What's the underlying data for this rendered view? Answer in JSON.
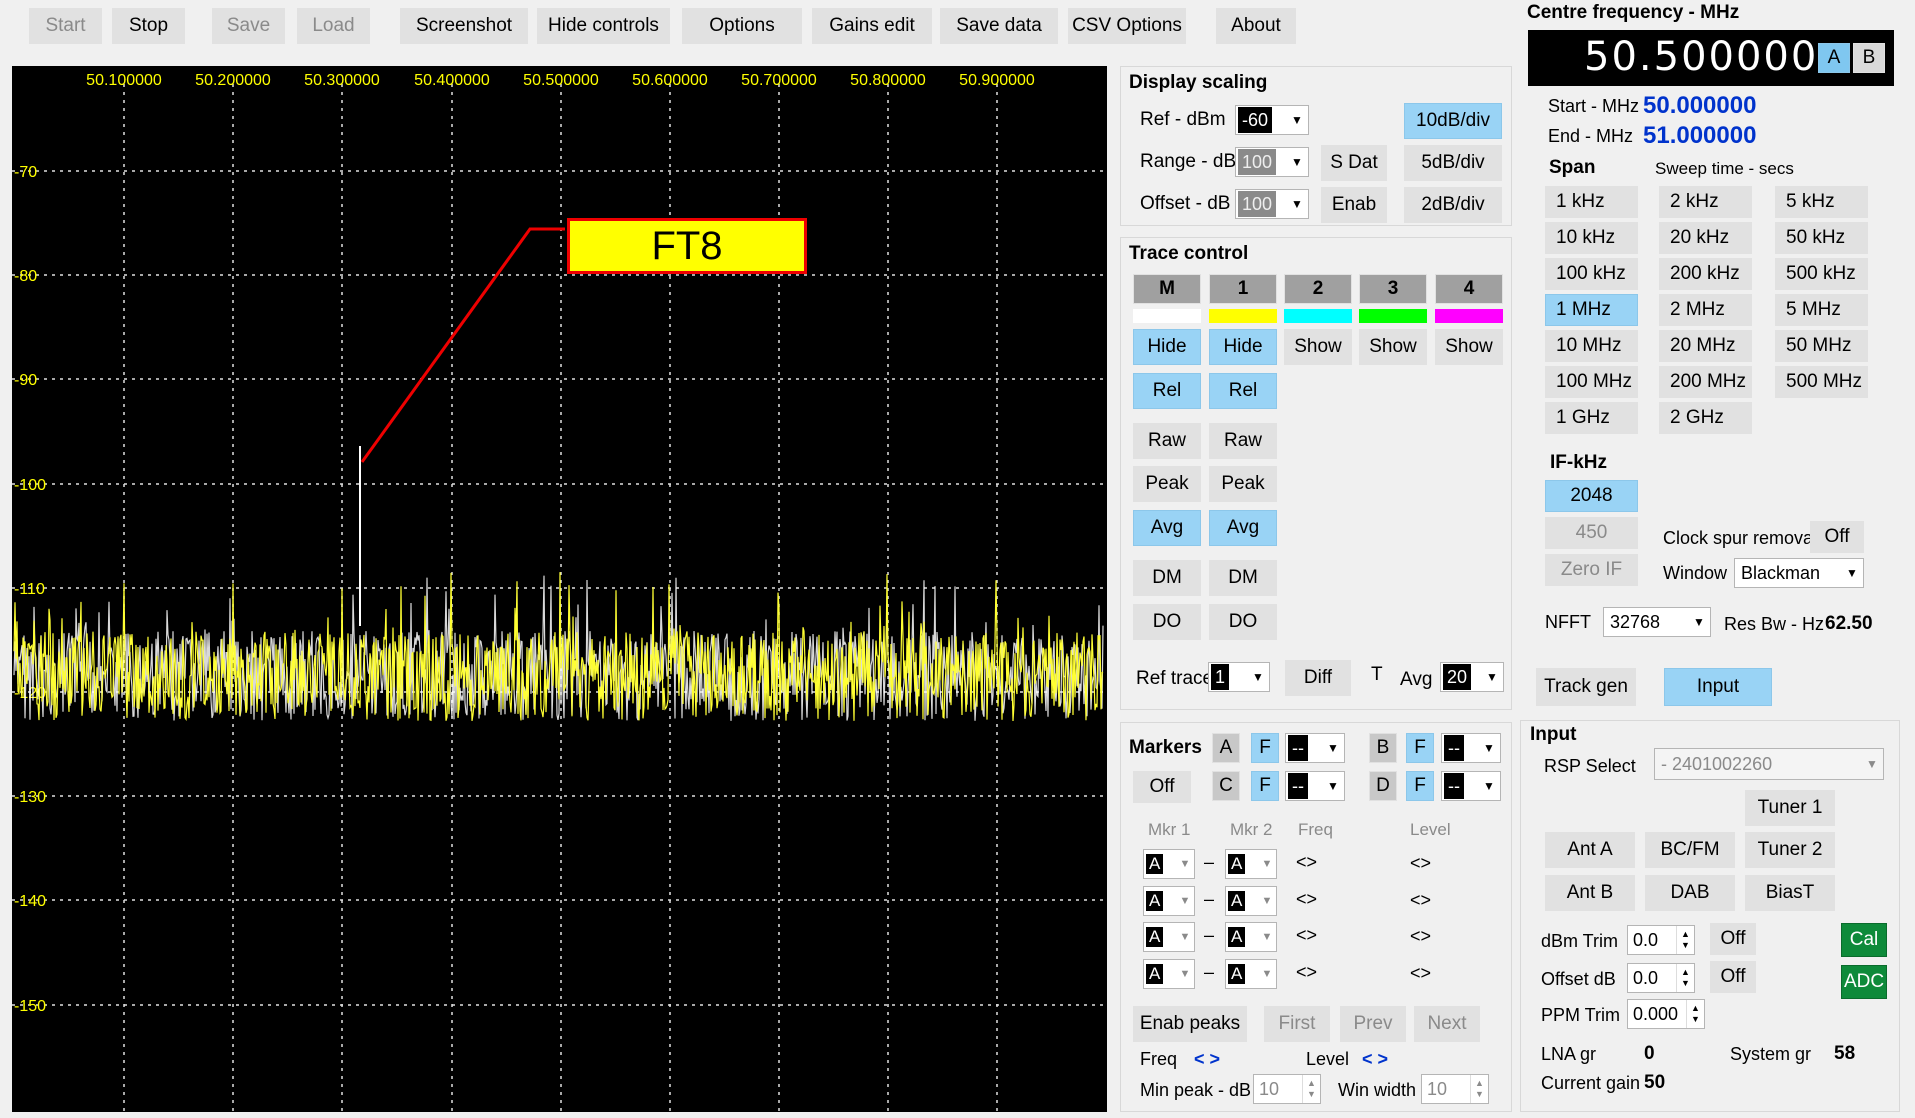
{
  "toolbar": {
    "start": "Start",
    "stop": "Stop",
    "save": "Save",
    "load": "Load",
    "screenshot": "Screenshot",
    "hide_controls": "Hide controls",
    "options": "Options",
    "gains_edit": "Gains edit",
    "save_data": "Save data",
    "csv_options": "CSV Options",
    "about": "About"
  },
  "plot": {
    "x_ticks": [
      "50.100000",
      "50.200000",
      "50.300000",
      "50.400000",
      "50.500000",
      "50.600000",
      "50.700000",
      "50.800000",
      "50.900000"
    ],
    "y_ticks": [
      "-70",
      "-80",
      "-90",
      "-100",
      "-110",
      "-120",
      "-130",
      "-140",
      "-150"
    ],
    "annotation": "FT8",
    "colors": {
      "background": "#000000",
      "trace": "#ffff33",
      "grid": "#e0e0e0",
      "axis_text": "#ffff00",
      "annotation_bg": "#ffff00",
      "annotation_border": "#ee0000"
    }
  },
  "display_scaling": {
    "title": "Display scaling",
    "ref_label": "Ref - dBm",
    "ref_value": "-60",
    "range_label": "Range - dB",
    "range_value": "100",
    "offset_label": "Offset - dB",
    "offset_value": "100",
    "sdat": "S Dat",
    "enab": "Enab",
    "d10": "10dB/div",
    "d5": "5dB/div",
    "d2": "2dB/div"
  },
  "trace_control": {
    "title": "Trace control",
    "headers": [
      "M",
      "1",
      "2",
      "3",
      "4"
    ],
    "swatches": [
      "#ffffff",
      "#ffff00",
      "#00ffff",
      "#00ff00",
      "#ff00ff"
    ],
    "hide": "Hide",
    "show": "Show",
    "rel": "Rel",
    "raw": "Raw",
    "peak": "Peak",
    "avg": "Avg",
    "dm": "DM",
    "do": "DO",
    "ref_trace_label": "Ref trace",
    "ref_trace_value": "1",
    "diff": "Diff",
    "t": "T",
    "avg_label": "Avg",
    "avg_value": "20"
  },
  "markers": {
    "title": "Markers",
    "a": "A",
    "b": "B",
    "c": "C",
    "d": "D",
    "f": "F",
    "dash": "--",
    "off": "Off",
    "mkr1": "Mkr 1",
    "mkr2": "Mkr 2",
    "freq": "Freq",
    "level": "Level",
    "row_val": "A",
    "sep": "–",
    "arrows": "<>",
    "enab_peaks": "Enab peaks",
    "first": "First",
    "prev": "Prev",
    "next": "Next",
    "freq_label": "Freq",
    "level_label": "Level",
    "nav": "< >",
    "min_peak_label": "Min peak - dB",
    "min_peak_value": "10",
    "win_width_label": "Win width",
    "win_width_value": "10"
  },
  "centre": {
    "title": "Centre frequency - MHz",
    "value": "50.500000",
    "a": "A",
    "b": "B",
    "start_label": "Start - MHz",
    "start_value": "50.000000",
    "end_label": "End - MHz",
    "end_value": "51.000000",
    "span_label": "Span",
    "sweep_label": "Sweep time - secs",
    "spans": [
      [
        "1 kHz",
        "2 kHz",
        "5 kHz"
      ],
      [
        "10 kHz",
        "20 kHz",
        "50 kHz"
      ],
      [
        "100 kHz",
        "200 kHz",
        "500 kHz"
      ],
      [
        "1 MHz",
        "2 MHz",
        "5 MHz"
      ],
      [
        "10 MHz",
        "20 MHz",
        "50 MHz"
      ],
      [
        "100 MHz",
        "200 MHz",
        "500 MHz"
      ],
      [
        "1 GHz",
        "2 GHz",
        ""
      ]
    ],
    "if_label": "IF-kHz",
    "if_2048": "2048",
    "if_450": "450",
    "zero_if": "Zero IF",
    "clock_spur": "Clock spur removal",
    "clock_spur_value": "Off",
    "window_label": "Window",
    "window_value": "Blackman",
    "nfft_label": "NFFT",
    "nfft_value": "32768",
    "resbw_label": "Res Bw - Hz",
    "resbw_value": "62.50"
  },
  "tabs": {
    "track_gen": "Track gen",
    "input": "Input"
  },
  "input": {
    "title": "Input",
    "rsp_label": "RSP Select",
    "rsp_value": "- 2401002260",
    "tuner1": "Tuner 1",
    "ant_a": "Ant A",
    "bcfm": "BC/FM",
    "tuner2": "Tuner 2",
    "ant_b": "Ant B",
    "dab": "DAB",
    "biast": "BiasT",
    "dbm_trim_label": "dBm Trim",
    "dbm_trim_value": "0.0",
    "offset_db_label": "Offset dB",
    "offset_db_value": "0.0",
    "off": "Off",
    "cal": "Cal",
    "adc": "ADC",
    "ppm_label": "PPM Trim",
    "ppm_value": "0.000",
    "lna_label": "LNA gr",
    "lna_value": "0",
    "system_label": "System gr",
    "system_value": "58",
    "current_label": "Current gain",
    "current_value": "50"
  }
}
